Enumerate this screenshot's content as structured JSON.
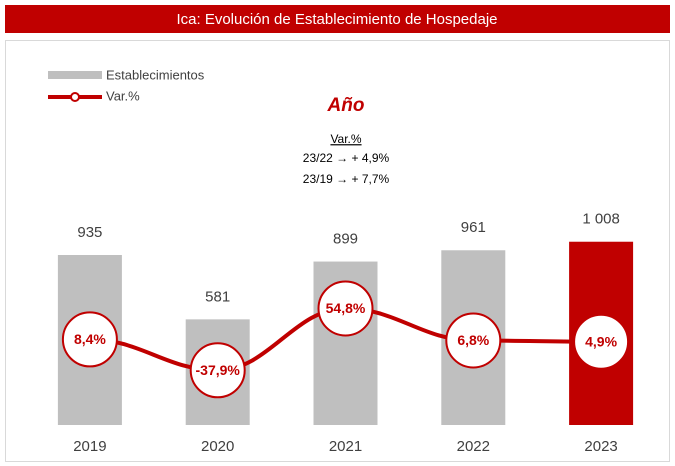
{
  "chart_data": {
    "type": "bar",
    "title": "Ica: Evolución de Establecimiento de Hospedaje",
    "annotations": {
      "heading": "Año",
      "subheading": "Var.%",
      "lines": [
        "23/22 → + 4,9%",
        "23/19 → + 7,7%"
      ]
    },
    "categories": [
      "2019",
      "2020",
      "2021",
      "2022",
      "2023"
    ],
    "series": [
      {
        "name": "Establecimientos",
        "type": "bar",
        "colors": [
          "#bfbfbf",
          "#bfbfbf",
          "#bfbfbf",
          "#bfbfbf",
          "#c00000"
        ],
        "values": [
          935,
          581,
          899,
          961,
          1008
        ],
        "value_labels": [
          "935",
          "581",
          "899",
          "961",
          "1 008"
        ]
      },
      {
        "name": "Var.%",
        "type": "line",
        "axis": "y2",
        "color": "#c00000",
        "values": [
          8.4,
          -37.9,
          54.8,
          6.8,
          4.9
        ],
        "value_labels": [
          "8,4%",
          "-37,9%",
          "54,8%",
          "6,8%",
          "4,9%"
        ]
      }
    ],
    "ylim": [
      0,
      1100
    ],
    "y2lim": [
      -120,
      180
    ],
    "legend": "top-left",
    "grid": false
  }
}
